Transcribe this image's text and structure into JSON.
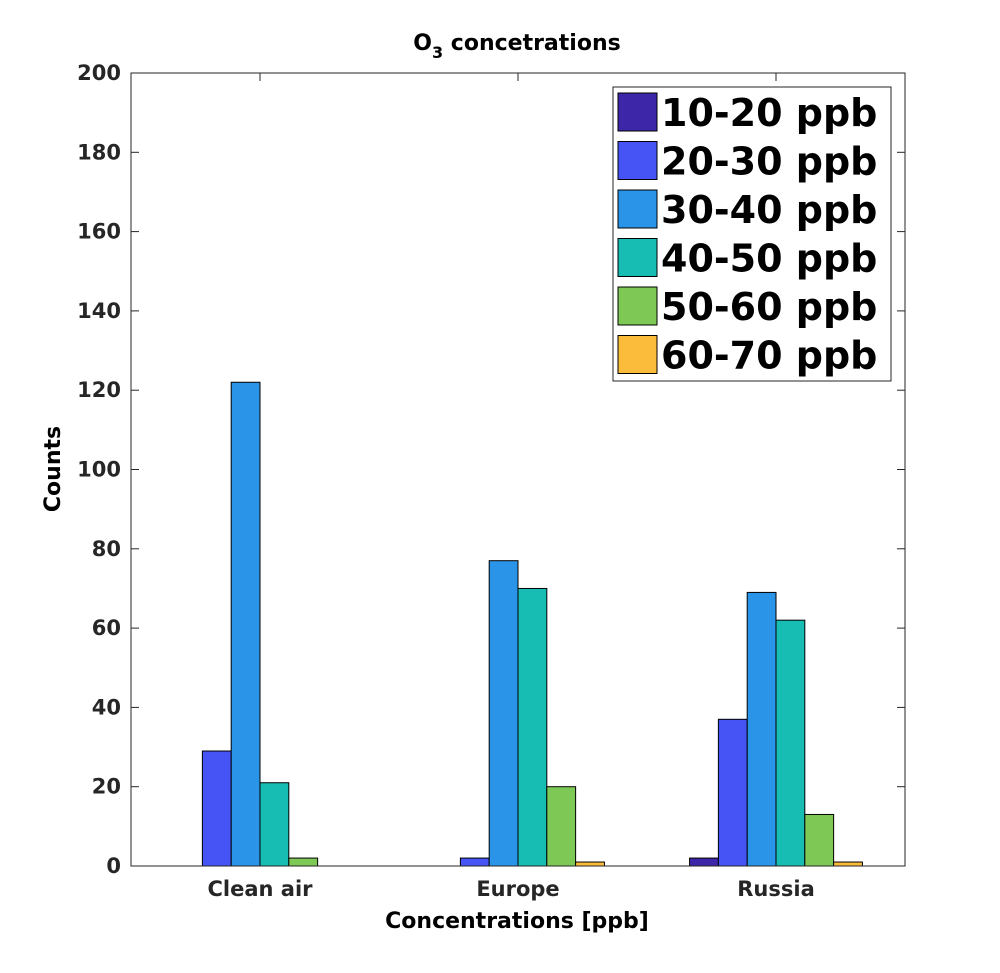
{
  "chart_data": {
    "type": "bar",
    "title": "O",
    "title_subscript": "3",
    "title_rest": " concetrations",
    "xlabel": "Concentrations [ppb]",
    "ylabel": "Counts",
    "categories": [
      "Clean air",
      "Europe",
      "Russia"
    ],
    "ylim": [
      0,
      200
    ],
    "yticks": [
      0,
      20,
      40,
      60,
      80,
      100,
      120,
      140,
      160,
      180,
      200
    ],
    "legend_position": "top-right",
    "series": [
      {
        "name": "10-20 ppb",
        "color": "#3e26a8",
        "values": [
          0,
          0,
          2
        ]
      },
      {
        "name": "20-30 ppb",
        "color": "#4653f5",
        "values": [
          29,
          2,
          37
        ]
      },
      {
        "name": "30-40 ppb",
        "color": "#2a95e8",
        "values": [
          122,
          77,
          69
        ]
      },
      {
        "name": "40-50 ppb",
        "color": "#17bdb3",
        "values": [
          21,
          70,
          62
        ]
      },
      {
        "name": "50-60 ppb",
        "color": "#7ec955",
        "values": [
          2,
          20,
          13
        ]
      },
      {
        "name": "60-70 ppb",
        "color": "#fbbc3b",
        "values": [
          0,
          1,
          1
        ]
      }
    ]
  }
}
